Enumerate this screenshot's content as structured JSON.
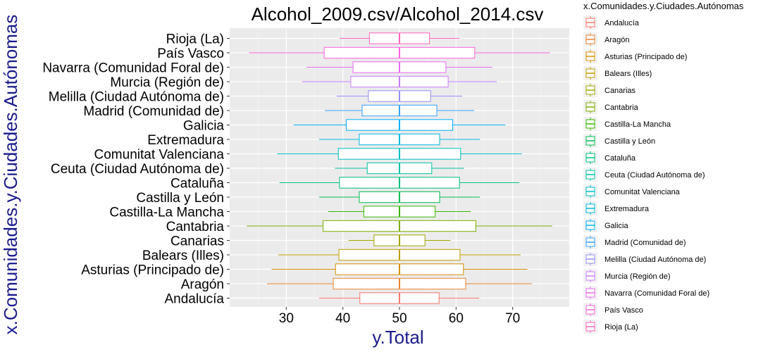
{
  "chart_data": {
    "type": "boxplot",
    "title": "Alcohol_2009.csv/Alcohol_2014.csv",
    "xlabel": "y.Total",
    "ylabel": "x.Comunidades.y.Ciudades.Autónomas",
    "xlim": [
      20,
      80
    ],
    "xticks": [
      30,
      40,
      50,
      60,
      70
    ],
    "grid": true,
    "legend": {
      "title": "x.Comunidades.y.Ciudades.Autónomas",
      "placement": "right"
    },
    "series": [
      {
        "name": "Andalucía",
        "color": "#F8766D",
        "min": 35.8,
        "q1": 43.0,
        "median": 50.0,
        "q3": 57.0,
        "max": 64.1
      },
      {
        "name": "Aragón",
        "color": "#EA8331",
        "min": 26.6,
        "q1": 38.3,
        "median": 50.0,
        "q3": 61.7,
        "max": 73.4
      },
      {
        "name": "Asturias (Principado de)",
        "color": "#D89000",
        "min": 27.4,
        "q1": 38.7,
        "median": 50.0,
        "q3": 61.3,
        "max": 72.6
      },
      {
        "name": "Balears (Illes)",
        "color": "#C09B00",
        "min": 28.6,
        "q1": 39.3,
        "median": 50.0,
        "q3": 60.7,
        "max": 71.4
      },
      {
        "name": "Canarias",
        "color": "#A3A500",
        "min": 41.0,
        "q1": 45.5,
        "median": 50.0,
        "q3": 54.5,
        "max": 59.0
      },
      {
        "name": "Cantabria",
        "color": "#7CAE00",
        "min": 23.0,
        "q1": 36.5,
        "median": 50.0,
        "q3": 63.5,
        "max": 77.0
      },
      {
        "name": "Castilla-La Mancha",
        "color": "#39B600",
        "min": 37.4,
        "q1": 43.7,
        "median": 50.0,
        "q3": 56.3,
        "max": 62.6
      },
      {
        "name": "Castilla y León",
        "color": "#00BB4E",
        "min": 35.8,
        "q1": 42.9,
        "median": 50.0,
        "q3": 57.1,
        "max": 64.2
      },
      {
        "name": "Cataluña",
        "color": "#00BF7D",
        "min": 28.8,
        "q1": 39.4,
        "median": 50.0,
        "q3": 60.6,
        "max": 71.2
      },
      {
        "name": "Ceuta (Ciudad Autónoma de)",
        "color": "#00C1A3",
        "min": 38.6,
        "q1": 44.3,
        "median": 50.0,
        "q3": 55.7,
        "max": 61.4
      },
      {
        "name": "Comunitat Valenciana",
        "color": "#00BFC4",
        "min": 28.4,
        "q1": 39.2,
        "median": 50.0,
        "q3": 60.8,
        "max": 71.6
      },
      {
        "name": "Extremadura",
        "color": "#00BAE0",
        "min": 35.8,
        "q1": 42.9,
        "median": 50.0,
        "q3": 57.1,
        "max": 64.2
      },
      {
        "name": "Galicia",
        "color": "#00B0F6",
        "min": 31.3,
        "q1": 40.6,
        "median": 50.0,
        "q3": 59.4,
        "max": 68.7
      },
      {
        "name": "Madrid (Comunidad de)",
        "color": "#35A2FF",
        "min": 36.8,
        "q1": 43.4,
        "median": 50.0,
        "q3": 56.6,
        "max": 63.2
      },
      {
        "name": "Melilla (Ciudad Autónoma de)",
        "color": "#9590FF",
        "min": 38.9,
        "q1": 44.5,
        "median": 50.0,
        "q3": 55.5,
        "max": 61.1
      },
      {
        "name": "Murcia (Región de)",
        "color": "#C77CFF",
        "min": 32.8,
        "q1": 41.4,
        "median": 50.0,
        "q3": 58.6,
        "max": 67.2
      },
      {
        "name": "Navarra (Comunidad Foral de)",
        "color": "#E76BF3",
        "min": 33.6,
        "q1": 41.8,
        "median": 50.0,
        "q3": 58.2,
        "max": 66.4
      },
      {
        "name": "País Vasco",
        "color": "#FA62DB",
        "min": 23.4,
        "q1": 36.7,
        "median": 50.0,
        "q3": 63.3,
        "max": 76.6
      },
      {
        "name": "Rioja (La)",
        "color": "#FF62BC",
        "min": 39.4,
        "q1": 44.7,
        "median": 50.0,
        "q3": 55.3,
        "max": 60.6
      }
    ]
  }
}
